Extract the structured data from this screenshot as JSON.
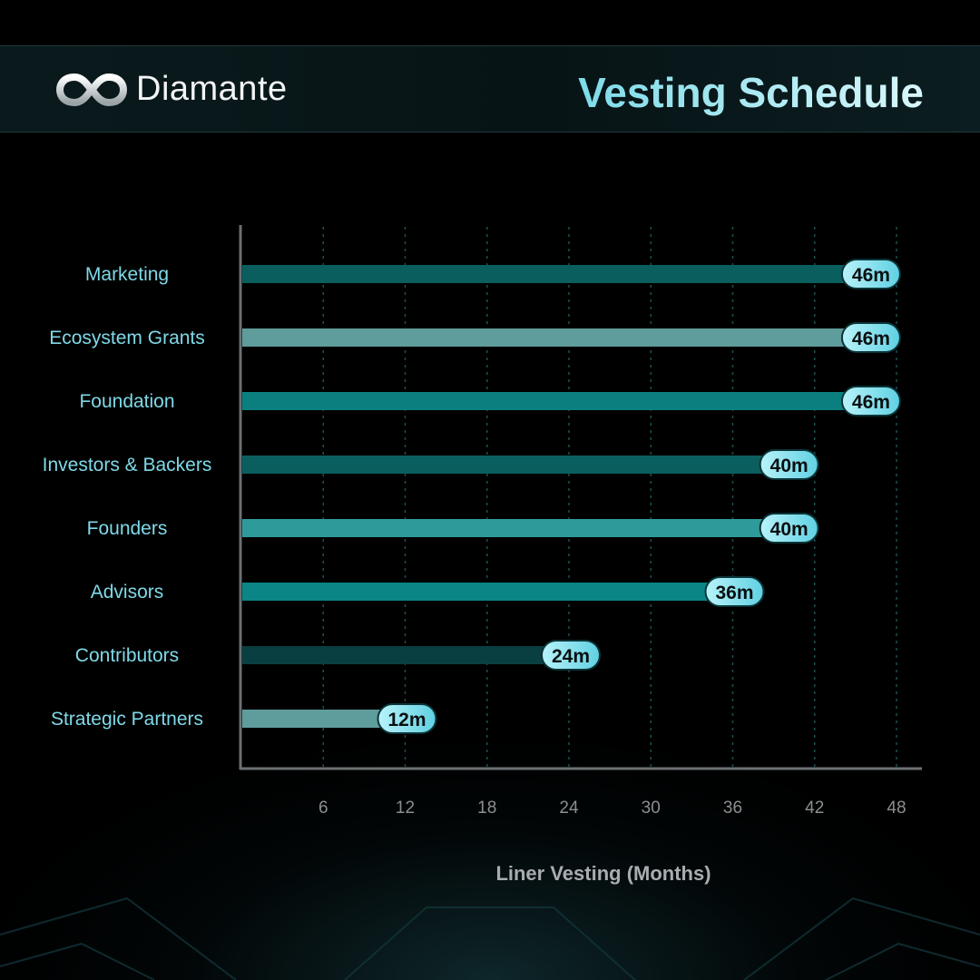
{
  "header": {
    "brand": "Diamante",
    "title": "Vesting Schedule"
  },
  "icons": {
    "logo": "infinity-logo-icon"
  },
  "chart_data": {
    "type": "bar",
    "orientation": "horizontal",
    "title": "Vesting Schedule",
    "xlabel": "Liner Vesting (Months)",
    "ylabel": "",
    "xlim": [
      0,
      48
    ],
    "xticks": [
      6,
      12,
      18,
      24,
      30,
      36,
      42,
      48
    ],
    "grid": "vertical dashed",
    "categories": [
      "Marketing",
      "Ecosystem Grants",
      "Foundation",
      "Investors & Backers",
      "Founders",
      "Advisors",
      "Contributors",
      "Strategic Partners"
    ],
    "values": [
      46,
      46,
      46,
      40,
      40,
      36,
      24,
      12
    ],
    "value_labels": [
      "46m",
      "46m",
      "46m",
      "40m",
      "40m",
      "36m",
      "24m",
      "12m"
    ],
    "bar_colors": [
      "#0b5e5e",
      "#5f9c9c",
      "#0b7f7f",
      "#0b5e5e",
      "#2f9a9a",
      "#0b8585",
      "#0a3f42",
      "#5f9c9c"
    ],
    "label_pill_color": "#8ee6f1"
  }
}
